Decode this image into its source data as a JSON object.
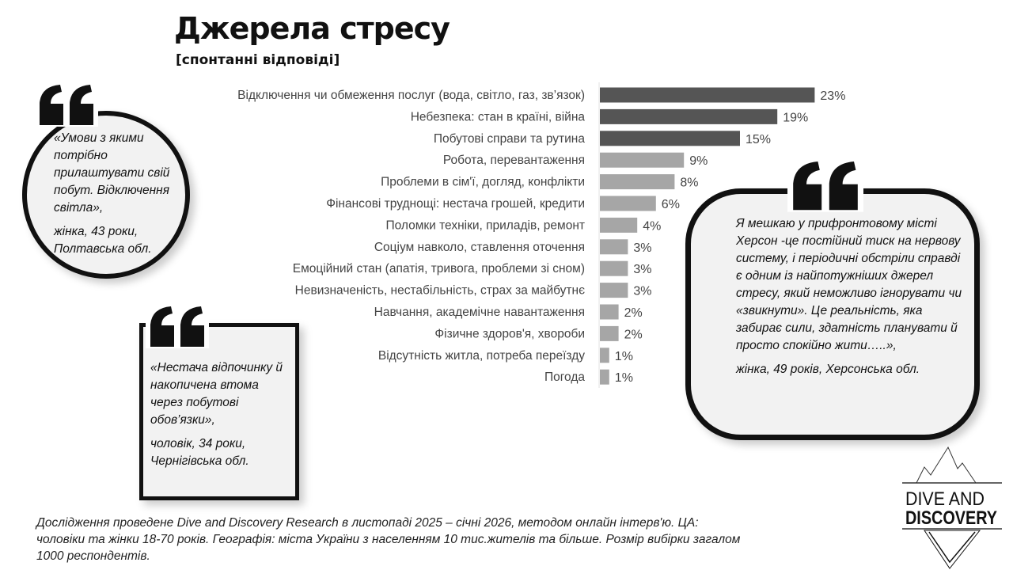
{
  "chart_data": {
    "type": "bar",
    "orientation": "horizontal",
    "title": "Джерела стресу",
    "subtitle": "[спонтанні відповіді]",
    "categories": [
      "Відключення чи обмеження послуг (вода, світло, газ, зв’язок)",
      "Небезпека: стан в країні, війна",
      "Побутові справи та рутина",
      "Робота, перевантаження",
      "Проблеми в сім'ї, догляд, конфлікти",
      "Фінансові труднощі: нестача грошей, кредити",
      "Поломки техніки, приладів, ремонт",
      "Соціум навколо, ставлення оточення",
      "Емоційний стан (апатія, тривога, проблеми зі сном)",
      "Невизначеність, нестабільність, страх за майбутнє",
      "Навчання, академічне навантаження",
      "Фізичне здоров'я, хвороби",
      "Відсутність житла, потреба переїзду",
      "Погода"
    ],
    "values": [
      23,
      19,
      15,
      9,
      8,
      6,
      4,
      3,
      3,
      3,
      2,
      2,
      1,
      1
    ],
    "labels": [
      "23%",
      "19%",
      "15%",
      "9%",
      "8%",
      "6%",
      "4%",
      "3%",
      "3%",
      "3%",
      "2%",
      "2%",
      "1%",
      "1%"
    ],
    "unit": "%",
    "colors": {
      "top3": "#555555",
      "rest": "#a6a6a6"
    }
  },
  "quotes": [
    {
      "text": "«Умови з якими потрібно прилаштувати свій побут. Відключення світла»,",
      "author": "жінка, 43 роки, Полтавська обл."
    },
    {
      "text": "«Нестача відпочинку й накопичена втома через побутові обов’язки»,",
      "author": " чоловік, 34 роки, Чернігівська обл."
    },
    {
      "text": "Я мешкаю у прифронтовому місті Херсон -це постійний тиск на нервову систему, і періодичні обстріли справді є одним із найпотужніших джерел стресу, який неможливо ігнорувати чи «звикнути». Це реальність, яка забирає сили, здатність планувати й просто спокійно жити…..»,",
      "author": "жінка, 49 років, Херсонська обл."
    }
  ],
  "quote_mark": "“",
  "footnote": "Дослідження проведене Dive and Discovery Research в листопаді 2025 – січні 2026, методом онлайн інтерв'ю. ЦА: чоловіки та жінки 18-70 років. Географія: міста України з населенням 10 тис.жителів та більше. Розмір вибірки загалом 1000 респондентів.",
  "logo": {
    "line1": "DIVE AND",
    "line2": "DISCOVERY"
  }
}
